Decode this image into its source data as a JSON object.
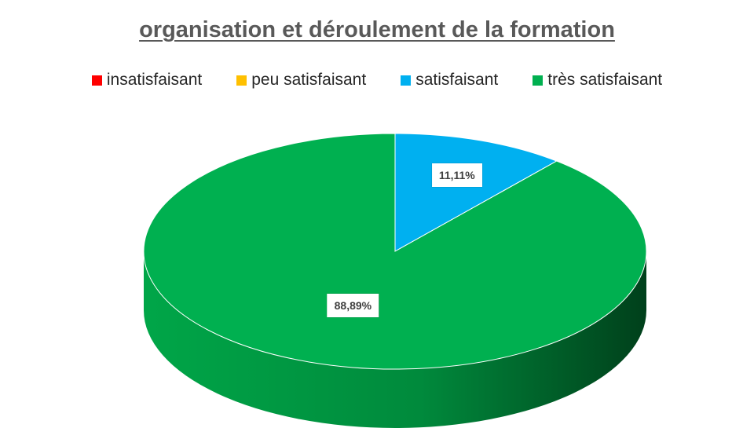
{
  "chart_data": {
    "type": "pie",
    "title": "organisation et déroulement de la formation",
    "categories": [
      "insatisfaisant",
      "peu satisfaisant",
      "satisfaisant",
      "très satisfaisant"
    ],
    "values": [
      0,
      0,
      11.11,
      88.89
    ],
    "data_labels": [
      "",
      "",
      "11,11%",
      "88,89%"
    ],
    "colors": [
      "#ff0000",
      "#ffc000",
      "#00b0f0",
      "#00b050"
    ],
    "legend_position": "top",
    "style": "3d"
  }
}
